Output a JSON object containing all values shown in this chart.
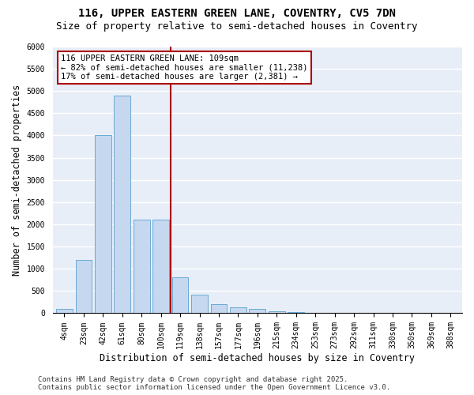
{
  "title_line1": "116, UPPER EASTERN GREEN LANE, COVENTRY, CV5 7DN",
  "title_line2": "Size of property relative to semi-detached houses in Coventry",
  "xlabel": "Distribution of semi-detached houses by size in Coventry",
  "ylabel": "Number of semi-detached properties",
  "categories": [
    "4sqm",
    "23sqm",
    "42sqm",
    "61sqm",
    "80sqm",
    "100sqm",
    "119sqm",
    "138sqm",
    "157sqm",
    "177sqm",
    "196sqm",
    "215sqm",
    "234sqm",
    "253sqm",
    "273sqm",
    "292sqm",
    "311sqm",
    "330sqm",
    "350sqm",
    "369sqm",
    "388sqm"
  ],
  "values": [
    100,
    1200,
    4000,
    4900,
    2100,
    2100,
    800,
    420,
    200,
    130,
    90,
    50,
    20,
    5,
    0,
    0,
    0,
    0,
    0,
    0,
    0
  ],
  "bar_color": "#c5d8f0",
  "bar_edge_color": "#6aaad4",
  "property_line_x": 5.5,
  "annotation_text_line1": "116 UPPER EASTERN GREEN LANE: 109sqm",
  "annotation_text_line2": "← 82% of semi-detached houses are smaller (11,238)",
  "annotation_text_line3": "17% of semi-detached houses are larger (2,381) →",
  "ylim": [
    0,
    6000
  ],
  "yticks": [
    0,
    500,
    1000,
    1500,
    2000,
    2500,
    3000,
    3500,
    4000,
    4500,
    5000,
    5500,
    6000
  ],
  "footer_line1": "Contains HM Land Registry data © Crown copyright and database right 2025.",
  "footer_line2": "Contains public sector information licensed under the Open Government Licence v3.0.",
  "bg_color": "#e8eef8",
  "fig_bg_color": "#ffffff",
  "annotation_box_color": "#ffffff",
  "annotation_box_edge_color": "#aa0000",
  "vline_color": "#aa0000",
  "grid_color": "#ffffff",
  "title_fontsize": 10,
  "subtitle_fontsize": 9,
  "tick_fontsize": 7,
  "label_fontsize": 8.5,
  "annotation_fontsize": 7.5,
  "footer_fontsize": 6.5
}
